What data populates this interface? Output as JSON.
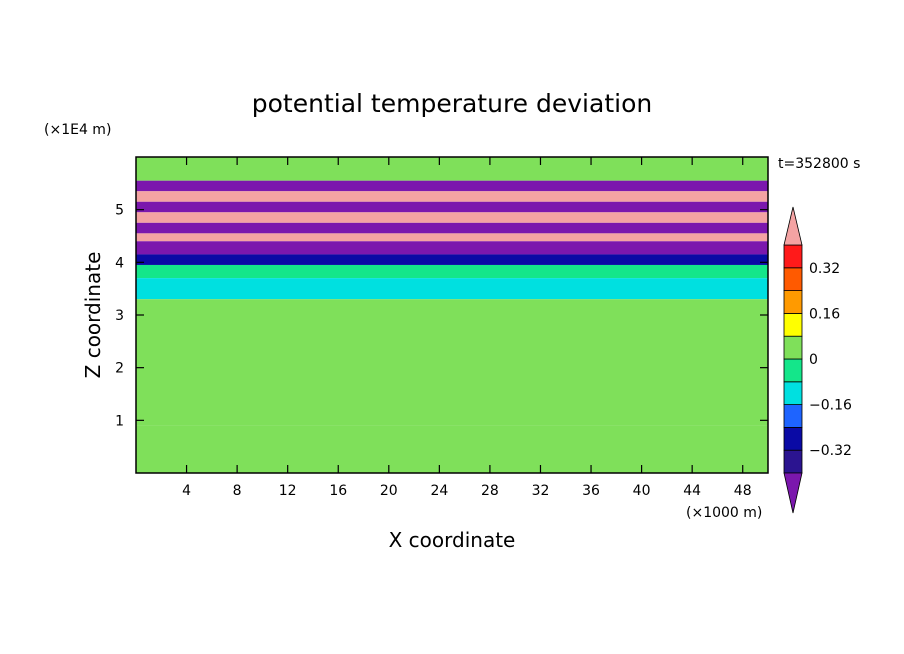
{
  "chart_data": {
    "type": "heatmap",
    "title": "potential temperature deviation",
    "xlabel": "X coordinate",
    "ylabel": "Z coordinate",
    "x_unit": "(×1000 m)",
    "y_unit": "(×1E4 m)",
    "time_label": "t=352800 s",
    "xlim": [
      0,
      50
    ],
    "ylim": [
      0,
      6
    ],
    "x_ticks": [
      4,
      8,
      12,
      16,
      20,
      24,
      28,
      32,
      36,
      40,
      44,
      48
    ],
    "y_ticks": [
      1,
      2,
      3,
      4,
      5
    ],
    "colorbar": {
      "levels": [
        -0.4,
        -0.32,
        -0.24,
        -0.16,
        -0.08,
        0,
        0.08,
        0.16,
        0.24,
        0.32,
        0.4
      ],
      "tick_labels": [
        {
          "value": 0.32,
          "label": "0.32"
        },
        {
          "value": 0.16,
          "label": "0.16"
        },
        {
          "value": 0,
          "label": "0"
        },
        {
          "value": -0.16,
          "label": "−0.16"
        },
        {
          "value": -0.32,
          "label": "−0.32"
        }
      ],
      "colors_low_to_high": [
        "#7b17ad",
        "#2b1490",
        "#0a0aa5",
        "#1e64ff",
        "#00e0e0",
        "#14e68a",
        "#7fe05a",
        "#ffff00",
        "#ff9a00",
        "#ff5a00",
        "#ff1a1a",
        "#f4a3a3"
      ],
      "extend": "both"
    },
    "field_bands": [
      {
        "z": [
          5.55,
          6.0
        ],
        "value": 0.0
      },
      {
        "z": [
          5.35,
          5.55
        ],
        "value": -0.45
      },
      {
        "z": [
          5.15,
          5.35
        ],
        "value": 0.45
      },
      {
        "z": [
          4.95,
          5.15
        ],
        "value": -0.45
      },
      {
        "z": [
          4.75,
          4.95
        ],
        "value": 0.45
      },
      {
        "z": [
          4.55,
          4.75
        ],
        "value": -0.45
      },
      {
        "z": [
          4.4,
          4.55
        ],
        "value": 0.45
      },
      {
        "z": [
          4.15,
          4.4
        ],
        "value": -0.45
      },
      {
        "z": [
          3.95,
          4.15
        ],
        "value": -0.3
      },
      {
        "z": [
          3.7,
          3.95
        ],
        "value": -0.05
      },
      {
        "z": [
          3.3,
          3.7
        ],
        "value": -0.12
      },
      {
        "z": [
          0.9,
          3.3
        ],
        "value": 0.0
      },
      {
        "z": [
          0.0,
          0.9
        ],
        "value": 0.05
      }
    ]
  }
}
